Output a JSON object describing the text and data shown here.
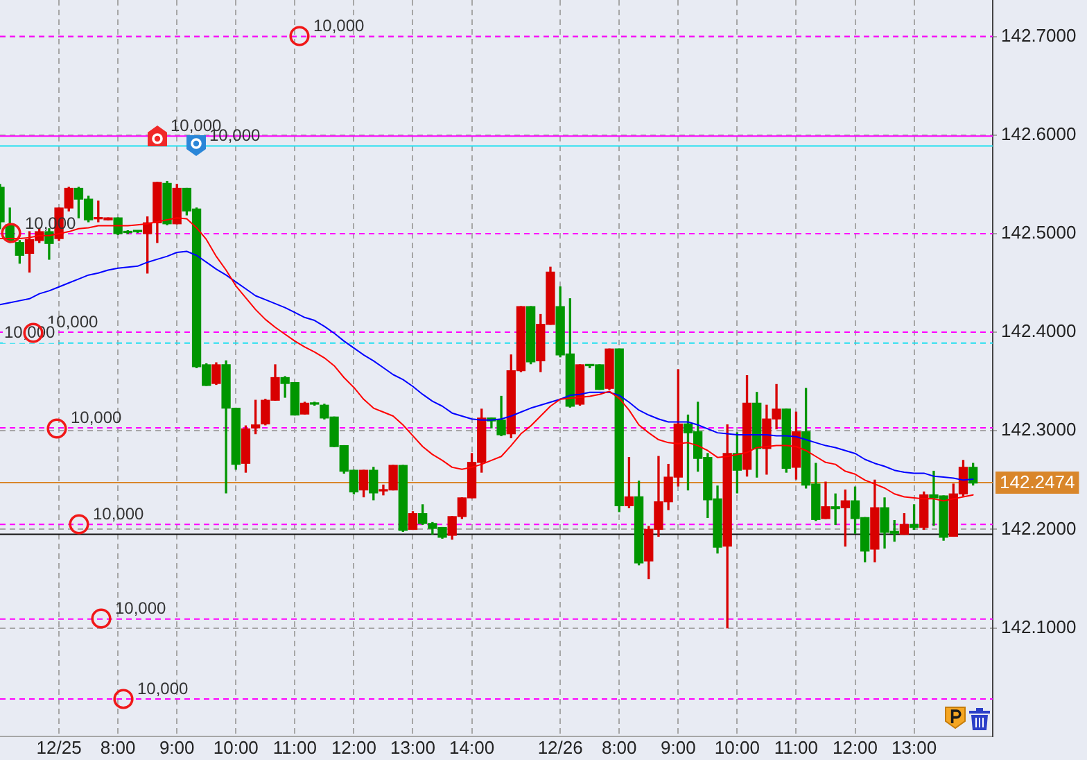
{
  "chart_data": {
    "type": "candlestick",
    "categories": [
      null,
      null,
      null,
      null,
      null,
      null,
      "12/25",
      null,
      null,
      null,
      null,
      null,
      "8:00",
      null,
      null,
      null,
      null,
      null,
      "9:00",
      null,
      null,
      null,
      null,
      null,
      "10:00",
      null,
      null,
      null,
      null,
      null,
      "11:00",
      null,
      null,
      null,
      null,
      null,
      "12:00",
      null,
      null,
      null,
      null,
      null,
      "13:00",
      null,
      null,
      null,
      null,
      null,
      "14:00",
      null,
      null,
      null,
      null,
      null,
      null,
      null,
      null,
      "12/26",
      null,
      null,
      null,
      null,
      null,
      "8:00",
      null,
      null,
      null,
      null,
      null,
      "9:00",
      null,
      null,
      null,
      null,
      null,
      "10:00",
      null,
      null,
      null,
      null,
      null,
      "11:00",
      null,
      null,
      null,
      null,
      null,
      "12:00",
      null,
      null,
      null,
      null,
      null,
      "13:00",
      null,
      null,
      null,
      null,
      null,
      null,
      null,
      null
    ],
    "ohlc": [
      [
        142.547,
        142.55,
        142.505,
        142.512
      ],
      [
        142.509,
        142.526,
        142.491,
        142.493
      ],
      [
        142.491,
        142.493,
        142.47,
        142.478
      ],
      [
        142.48,
        142.502,
        142.461,
        142.494
      ],
      [
        142.493,
        142.505,
        142.491,
        142.502
      ],
      [
        142.502,
        142.505,
        142.474,
        142.49
      ],
      [
        142.495,
        142.526,
        142.493,
        142.526
      ],
      [
        142.526,
        142.547,
        142.523,
        142.546
      ],
      [
        142.546,
        142.547,
        142.516,
        142.535
      ],
      [
        142.535,
        142.538,
        142.512,
        142.514
      ],
      [
        142.515,
        142.533,
        142.512,
        142.516
      ],
      [
        142.514,
        142.516,
        142.514,
        142.516
      ],
      [
        142.516,
        142.516,
        142.499,
        142.5
      ],
      [
        142.502,
        142.503,
        142.5,
        142.501
      ],
      [
        142.503,
        142.503,
        142.501,
        142.502
      ],
      [
        142.5,
        142.517,
        142.46,
        142.511
      ],
      [
        142.511,
        142.552,
        142.491,
        142.552
      ],
      [
        142.551,
        142.553,
        142.509,
        142.51
      ],
      [
        142.51,
        142.55,
        142.51,
        142.546
      ],
      [
        142.546,
        142.546,
        142.519,
        142.523
      ],
      [
        142.525,
        142.526,
        142.364,
        142.365
      ],
      [
        142.367,
        142.368,
        142.346,
        142.346
      ],
      [
        142.348,
        142.369,
        142.347,
        142.367
      ],
      [
        142.367,
        142.371,
        142.237,
        142.323
      ],
      [
        142.323,
        142.323,
        142.261,
        142.266
      ],
      [
        142.267,
        142.305,
        142.258,
        142.302
      ],
      [
        142.303,
        142.331,
        142.297,
        142.306
      ],
      [
        142.307,
        142.332,
        142.306,
        142.331
      ],
      [
        142.331,
        142.367,
        142.331,
        142.354
      ],
      [
        142.354,
        142.355,
        142.334,
        142.348
      ],
      [
        142.349,
        142.349,
        142.316,
        142.316
      ],
      [
        142.317,
        142.329,
        142.317,
        142.328
      ],
      [
        142.328,
        142.329,
        142.326,
        142.327
      ],
      [
        142.326,
        142.327,
        142.312,
        142.313
      ],
      [
        142.314,
        142.314,
        142.284,
        142.284
      ],
      [
        142.285,
        142.285,
        142.257,
        142.259
      ],
      [
        142.26,
        142.26,
        142.236,
        142.238
      ],
      [
        142.24,
        142.26,
        142.233,
        142.26
      ],
      [
        142.26,
        142.263,
        142.23,
        142.237
      ],
      [
        142.239,
        142.245,
        142.235,
        142.24
      ],
      [
        142.24,
        142.265,
        142.24,
        142.265
      ],
      [
        142.265,
        142.265,
        142.198,
        142.199
      ],
      [
        142.2,
        142.218,
        142.2,
        142.216
      ],
      [
        142.216,
        142.225,
        142.205,
        142.206
      ],
      [
        142.206,
        142.207,
        142.195,
        142.201
      ],
      [
        142.202,
        142.202,
        142.191,
        142.192
      ],
      [
        142.194,
        142.213,
        142.19,
        142.213
      ],
      [
        142.213,
        142.232,
        142.211,
        142.232
      ],
      [
        142.232,
        142.277,
        142.232,
        142.268
      ],
      [
        142.268,
        142.322,
        142.258,
        142.313
      ],
      [
        142.313,
        142.313,
        142.303,
        142.31
      ],
      [
        142.311,
        142.335,
        142.295,
        142.296
      ],
      [
        142.297,
        142.377,
        142.293,
        142.361
      ],
      [
        142.361,
        142.426,
        142.36,
        142.426
      ],
      [
        142.426,
        142.426,
        142.368,
        142.37
      ],
      [
        142.371,
        142.418,
        142.36,
        142.408
      ],
      [
        142.408,
        142.466,
        142.408,
        142.461
      ],
      [
        142.426,
        142.446,
        142.375,
        142.377
      ],
      [
        142.378,
        142.434,
        142.324,
        142.325
      ],
      [
        142.327,
        142.367,
        142.326,
        142.367
      ],
      [
        142.367,
        142.367,
        142.364,
        142.366
      ],
      [
        142.367,
        142.367,
        142.342,
        142.342
      ],
      [
        142.343,
        142.383,
        142.342,
        142.383
      ],
      [
        142.383,
        142.383,
        142.218,
        142.224
      ],
      [
        142.224,
        142.273,
        142.222,
        142.233
      ],
      [
        142.233,
        142.249,
        142.164,
        142.166
      ],
      [
        142.168,
        142.203,
        142.15,
        142.2
      ],
      [
        142.2,
        142.274,
        142.193,
        142.228
      ],
      [
        142.228,
        142.266,
        142.22,
        142.253
      ],
      [
        142.253,
        142.362,
        142.244,
        142.307
      ],
      [
        142.307,
        142.316,
        142.24,
        142.298
      ],
      [
        142.299,
        142.329,
        142.259,
        142.272
      ],
      [
        142.273,
        142.277,
        142.212,
        142.23
      ],
      [
        142.231,
        142.244,
        142.176,
        142.182
      ],
      [
        142.183,
        142.306,
        142.1,
        142.277
      ],
      [
        142.277,
        142.298,
        142.237,
        142.26
      ],
      [
        142.261,
        142.356,
        142.254,
        142.328
      ],
      [
        142.328,
        142.339,
        142.253,
        142.282
      ],
      [
        142.282,
        142.326,
        142.256,
        142.312
      ],
      [
        142.312,
        142.347,
        142.302,
        142.322
      ],
      [
        142.322,
        142.322,
        142.258,
        142.262
      ],
      [
        142.263,
        142.319,
        142.251,
        142.299
      ],
      [
        142.299,
        142.343,
        142.242,
        142.245
      ],
      [
        142.246,
        142.267,
        142.209,
        142.21
      ],
      [
        142.211,
        142.248,
        142.211,
        142.223
      ],
      [
        142.223,
        142.236,
        142.205,
        142.221
      ],
      [
        142.222,
        142.24,
        142.183,
        142.229
      ],
      [
        142.229,
        142.243,
        142.196,
        142.211
      ],
      [
        142.212,
        142.212,
        142.167,
        142.178
      ],
      [
        142.18,
        142.25,
        142.167,
        142.222
      ],
      [
        142.222,
        142.232,
        142.181,
        142.197
      ],
      [
        142.198,
        142.209,
        142.188,
        142.196
      ],
      [
        142.195,
        142.216,
        142.195,
        142.205
      ],
      [
        142.205,
        142.225,
        142.2,
        142.202
      ],
      [
        142.202,
        142.238,
        142.2,
        142.235
      ],
      [
        142.235,
        142.259,
        142.204,
        142.232
      ],
      [
        142.234,
        142.234,
        142.189,
        142.192
      ],
      [
        142.193,
        142.246,
        142.193,
        142.236
      ],
      [
        142.236,
        142.27,
        142.234,
        142.263
      ],
      [
        142.263,
        142.267,
        142.245,
        142.247
      ],
      null,
      null
    ],
    "colors": [
      "#009600",
      "#009600",
      "#009600",
      "#d80000",
      "#d80000",
      "#009600",
      "#d80000",
      "#d80000",
      "#009600",
      "#009600",
      "#d80000",
      "#d80000",
      "#009600",
      "#009600",
      "#009600",
      "#d80000",
      "#d80000",
      "#009600",
      "#d80000",
      "#009600",
      "#009600",
      "#009600",
      "#d80000",
      "#009600",
      "#009600",
      "#d80000",
      "#d80000",
      "#d80000",
      "#d80000",
      "#009600",
      "#009600",
      "#d80000",
      "#009600",
      "#009600",
      "#009600",
      "#009600",
      "#009600",
      "#d80000",
      "#009600",
      "#d80000",
      "#d80000",
      "#009600",
      "#d80000",
      "#009600",
      "#009600",
      "#009600",
      "#d80000",
      "#d80000",
      "#d80000",
      "#d80000",
      "#009600",
      "#009600",
      "#d80000",
      "#d80000",
      "#009600",
      "#d80000",
      "#d80000",
      "#009600",
      "#009600",
      "#d80000",
      "#009600",
      "#009600",
      "#d80000",
      "#009600",
      "#d80000",
      "#009600",
      "#d80000",
      "#d80000",
      "#d80000",
      "#d80000",
      "#009600",
      "#009600",
      "#009600",
      "#009600",
      "#d80000",
      "#009600",
      "#d80000",
      "#009600",
      "#d80000",
      "#d80000",
      "#009600",
      "#d80000",
      "#009600",
      "#009600",
      "#d80000",
      "#009600",
      "#d80000",
      "#009600",
      "#009600",
      "#d80000",
      "#009600",
      "#009600",
      "#d80000",
      "#009600",
      "#d80000",
      "#009600",
      "#009600",
      "#d80000",
      "#d80000",
      "#009600",
      null,
      null
    ],
    "series": [
      {
        "type": "line",
        "color": "#ff0000",
        "values": [
          142.495,
          142.495,
          142.495,
          142.496,
          142.498,
          142.498,
          142.5,
          142.502,
          142.505,
          142.506,
          142.508,
          142.508,
          142.508,
          142.508,
          142.509,
          142.51,
          142.512,
          142.514,
          142.516,
          142.515,
          142.506,
          142.494,
          142.477,
          142.463,
          142.447,
          142.435,
          142.423,
          142.413,
          142.405,
          142.398,
          142.391,
          142.385,
          142.38,
          142.374,
          142.366,
          142.354,
          142.344,
          142.332,
          142.323,
          142.319,
          142.315,
          142.306,
          142.295,
          142.284,
          142.276,
          142.27,
          142.263,
          142.261,
          142.263,
          142.266,
          142.27,
          142.274,
          142.285,
          142.297,
          142.305,
          142.315,
          142.325,
          142.332,
          142.333,
          142.334,
          142.335,
          142.337,
          142.34,
          142.333,
          142.321,
          142.306,
          142.298,
          142.291,
          142.288,
          142.287,
          142.288,
          142.285,
          142.28,
          142.273,
          142.274,
          142.276,
          142.278,
          142.283,
          142.284,
          142.285,
          142.285,
          142.284,
          142.28,
          142.274,
          142.268,
          142.266,
          142.259,
          142.256,
          142.25,
          142.246,
          142.242,
          142.236,
          142.233,
          142.232,
          142.231,
          142.231,
          142.229,
          142.231,
          142.233,
          142.235,
          null,
          null
        ]
      },
      {
        "type": "line",
        "color": "#0000ff",
        "values": [
          142.428,
          142.43,
          142.432,
          142.434,
          142.439,
          142.442,
          142.446,
          142.45,
          142.454,
          142.458,
          142.46,
          142.463,
          142.465,
          142.466,
          142.467,
          142.471,
          142.474,
          142.477,
          142.481,
          142.482,
          142.478,
          142.471,
          142.464,
          142.458,
          142.451,
          142.444,
          142.437,
          142.433,
          142.429,
          142.425,
          142.42,
          142.415,
          142.412,
          142.406,
          142.399,
          142.391,
          142.384,
          142.377,
          142.371,
          142.364,
          142.357,
          142.352,
          142.345,
          142.337,
          142.33,
          142.325,
          142.318,
          142.315,
          142.312,
          142.311,
          142.311,
          142.312,
          142.315,
          142.319,
          142.323,
          142.326,
          142.329,
          142.332,
          142.336,
          142.337,
          142.339,
          142.339,
          142.339,
          142.336,
          142.329,
          142.321,
          142.316,
          142.312,
          142.309,
          142.309,
          142.309,
          142.306,
          142.302,
          142.298,
          142.297,
          142.296,
          142.296,
          142.296,
          142.296,
          142.295,
          142.295,
          142.294,
          142.291,
          142.288,
          142.285,
          142.283,
          142.28,
          142.277,
          142.271,
          142.267,
          142.264,
          142.26,
          142.258,
          142.257,
          142.257,
          142.254,
          142.253,
          142.252,
          142.25,
          142.251,
          null,
          null
        ]
      }
    ],
    "marker": "none",
    "ylim": [
      141.99,
      142.737
    ],
    "yticks": [
      {
        "value": 142.1,
        "label": "142.1000"
      },
      {
        "value": 142.2,
        "label": "142.2000"
      },
      {
        "value": 142.3,
        "label": "142.3000"
      },
      {
        "value": 142.4,
        "label": "142.4000"
      },
      {
        "value": 142.5,
        "label": "142.5000"
      },
      {
        "value": 142.6,
        "label": "142.6000"
      },
      {
        "value": 142.7,
        "label": "142.7000"
      }
    ],
    "grid": true,
    "ref_lines": [
      {
        "axis": "y",
        "value": 142.7,
        "color": "#ff00ff",
        "line_style": "dashed"
      },
      {
        "axis": "y",
        "value": 142.5,
        "color": "#ff00ff",
        "line_style": "dashed"
      },
      {
        "axis": "y",
        "value": 142.4,
        "color": "#ff00ff",
        "line_style": "dashed"
      },
      {
        "axis": "y",
        "value": 142.303,
        "color": "#ff00ff",
        "line_style": "dashed"
      },
      {
        "axis": "y",
        "value": 142.205,
        "color": "#ff00ff",
        "line_style": "dashed"
      },
      {
        "axis": "y",
        "value": 142.109,
        "color": "#ff00ff",
        "line_style": "dashed"
      },
      {
        "axis": "y",
        "value": 142.028,
        "color": "#ff00ff",
        "line_style": "dashed"
      },
      {
        "axis": "y",
        "value": 142.599,
        "color": "#ff00ff",
        "line_style": "solid"
      },
      {
        "axis": "y",
        "value": 142.589,
        "color": "#20e0f0",
        "line_style": "solid"
      },
      {
        "axis": "y",
        "value": 142.389,
        "color": "#20e0f0",
        "line_style": "dashed"
      },
      {
        "axis": "y",
        "value": 142.195,
        "color": "#111111",
        "line_style": "solid"
      },
      {
        "axis": "y",
        "value": 142.2474,
        "label": "142.2474",
        "color": "#d9862a",
        "line_style": "solid"
      }
    ],
    "annotations": [
      {
        "text": "10,000",
        "y": 142.7
      },
      {
        "text": "10,000",
        "y": 142.5
      },
      {
        "text": "10,000",
        "y": 142.4
      },
      {
        "text": "10,000",
        "y": 142.303
      },
      {
        "text": "10,000",
        "y": 142.205
      },
      {
        "text": "10,000",
        "y": 142.109
      },
      {
        "text": "10,000",
        "y": 142.028
      },
      {
        "text": "10,000",
        "y": 142.599
      },
      {
        "text": "10,000",
        "y": 142.589
      },
      {
        "text": "10,000",
        "y": 142.389
      }
    ]
  }
}
